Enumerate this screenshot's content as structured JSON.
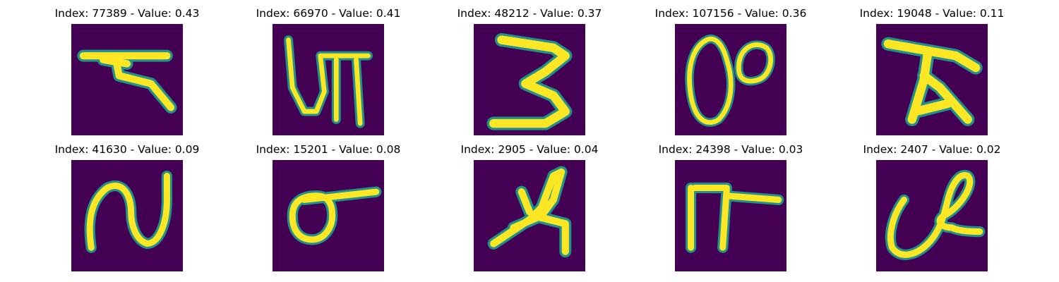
{
  "colors": {
    "background_cell": "#440154",
    "stroke_edge": "#21918c",
    "stroke_core": "#fde725"
  },
  "panels": [
    {
      "title": "Index: 77389 - Value: 0.43",
      "glyph": "hindi-like-character-1"
    },
    {
      "title": "Index: 66970 - Value: 0.41",
      "glyph": "hindi-like-character-2"
    },
    {
      "title": "Index: 48212 - Value: 0.37",
      "glyph": "digit-three"
    },
    {
      "title": "Index: 107156 - Value: 0.36",
      "glyph": "looped-zero-eight"
    },
    {
      "title": "Index: 19048 - Value: 0.11",
      "glyph": "hindi-like-character-3"
    },
    {
      "title": "Index: 41630 - Value: 0.09",
      "glyph": "cursive-n"
    },
    {
      "title": "Index: 15201 - Value: 0.08",
      "glyph": "circle-with-bar"
    },
    {
      "title": "Index: 2905 - Value: 0.04",
      "glyph": "slanted-b-like"
    },
    {
      "title": "Index: 24398 - Value: 0.03",
      "glyph": "pi-like"
    },
    {
      "title": "Index: 2407 - Value: 0.02",
      "glyph": "cursive-looped-e"
    }
  ]
}
